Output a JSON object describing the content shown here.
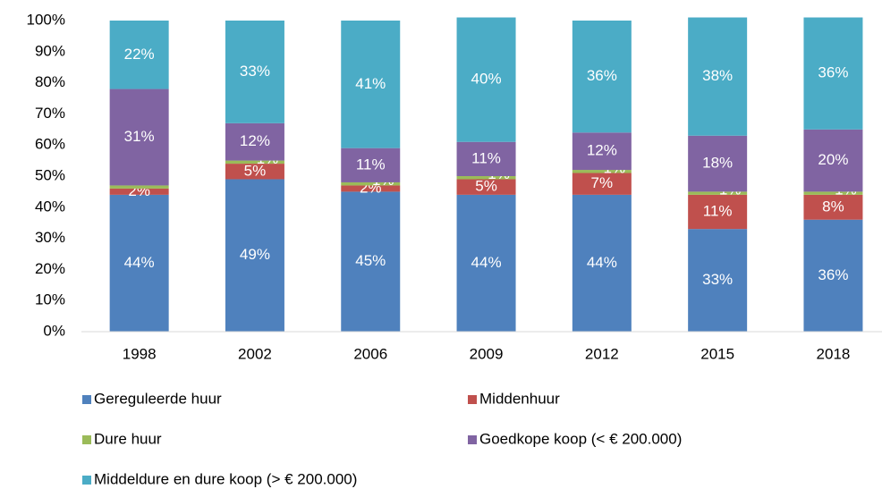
{
  "chart_data": {
    "type": "stacked_bar",
    "categories": [
      "1998",
      "2002",
      "2006",
      "2009",
      "2012",
      "2015",
      "2018"
    ],
    "series": [
      {
        "name": "Gereguleerde huur",
        "color": "#4f81bd",
        "values": [
          44,
          49,
          45,
          44,
          44,
          33,
          36
        ],
        "value_labels": [
          "44%",
          "49%",
          "45%",
          "44%",
          "44%",
          "33%",
          "36%"
        ]
      },
      {
        "name": "Middenhuur",
        "color": "#c0504d",
        "values": [
          2,
          5,
          2,
          5,
          7,
          11,
          8
        ],
        "value_labels": [
          "2%",
          "5%",
          "2%",
          "5%",
          "7%",
          "11%",
          "8%"
        ]
      },
      {
        "name": "Dure huur",
        "color": "#9bbb59",
        "values": [
          1,
          1,
          1,
          1,
          1,
          1,
          1
        ],
        "value_labels": [
          null,
          "1%",
          "1%",
          "1%",
          "1%",
          "1%",
          "1%"
        ]
      },
      {
        "name": "Goedkope koop (< € 200.000)",
        "color": "#8064a2",
        "values": [
          31,
          12,
          11,
          11,
          12,
          18,
          20
        ],
        "value_labels": [
          "31%",
          "12%",
          "11%",
          "11%",
          "12%",
          "18%",
          "20%"
        ]
      },
      {
        "name": "Middeldure en dure koop (> € 200.000)",
        "color": "#4bacc6",
        "values": [
          22,
          33,
          41,
          40,
          36,
          38,
          36
        ],
        "value_labels": [
          "22%",
          "33%",
          "41%",
          "40%",
          "36%",
          "38%",
          "36%"
        ]
      }
    ],
    "ylim": [
      0,
      100
    ],
    "yticks": [
      {
        "value": 0,
        "label": "0%"
      },
      {
        "value": 10,
        "label": "10%"
      },
      {
        "value": 20,
        "label": "20%"
      },
      {
        "value": 30,
        "label": "30%"
      },
      {
        "value": 40,
        "label": "40%"
      },
      {
        "value": 50,
        "label": "50%"
      },
      {
        "value": 60,
        "label": "60%"
      },
      {
        "value": 70,
        "label": "70%"
      },
      {
        "value": 80,
        "label": "80%"
      },
      {
        "value": 90,
        "label": "90%"
      },
      {
        "value": 100,
        "label": "100%"
      }
    ],
    "legend": "bottom"
  }
}
